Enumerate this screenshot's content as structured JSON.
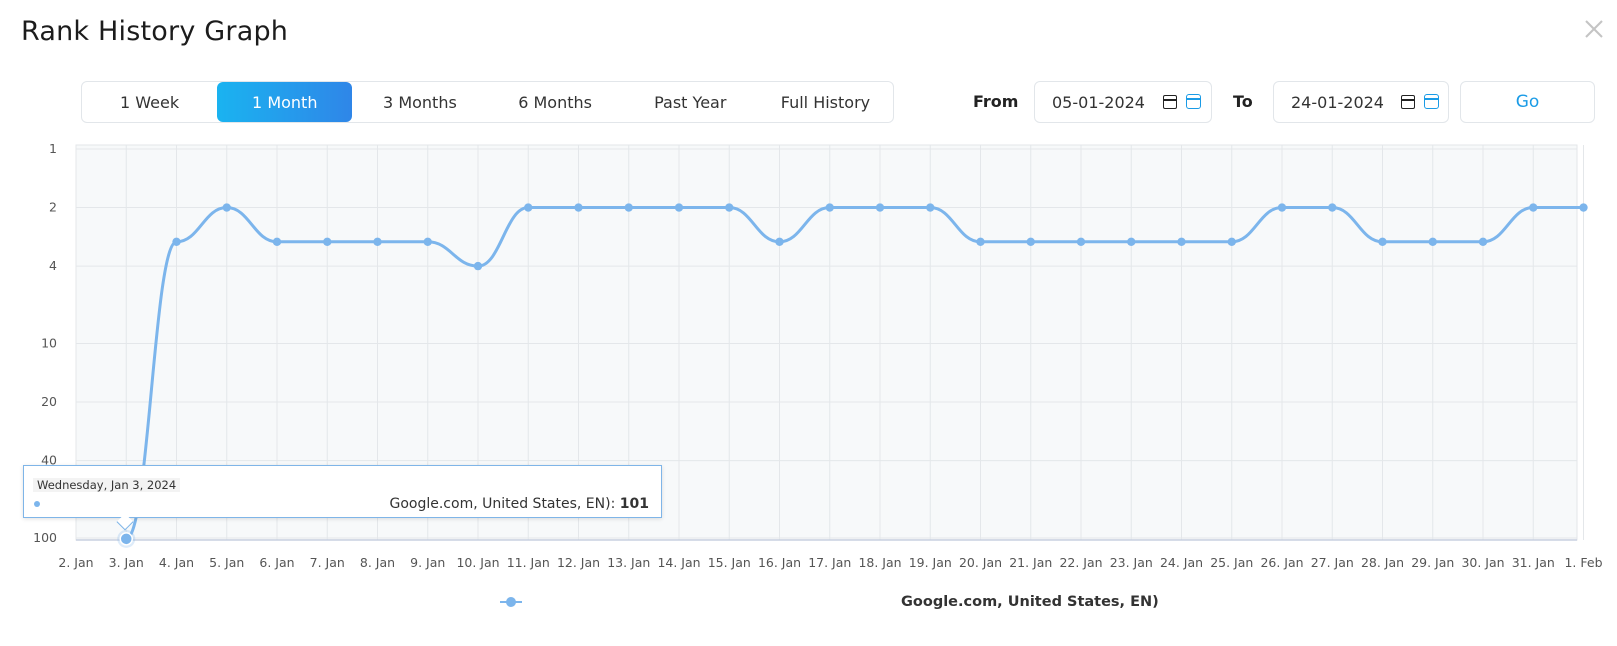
{
  "modal": {
    "title": "Rank History Graph",
    "close_icon": "close-icon"
  },
  "periods": [
    {
      "label": "1 Week",
      "active": false
    },
    {
      "label": "1 Month",
      "active": true
    },
    {
      "label": "3 Months",
      "active": false
    },
    {
      "label": "6 Months",
      "active": false
    },
    {
      "label": "Past Year",
      "active": false
    },
    {
      "label": "Full History",
      "active": false
    }
  ],
  "range": {
    "from_label": "From",
    "from_value": "05-01-2024",
    "to_label": "To",
    "to_value": "24-01-2024",
    "go_label": "Go"
  },
  "colors": {
    "accent": "#1a9be6",
    "series": "#7cb5ec",
    "active_gradient_start": "#1ab3f0",
    "active_gradient_end": "#2f86e8"
  },
  "tooltip": {
    "date": "Wednesday, Jan 3, 2024",
    "series_text": "Google.com, United States, EN): ",
    "value": "101"
  },
  "legend": {
    "label": "Google.com, United States, EN)"
  },
  "chart_data": {
    "type": "line",
    "title": "",
    "xlabel": "",
    "ylabel": "",
    "y_scale": "log",
    "y_reversed": true,
    "ylim": [
      1,
      101
    ],
    "yticks": [
      1,
      2,
      4,
      10,
      20,
      40,
      100
    ],
    "grid": true,
    "legend_position": "bottom",
    "x_tick_labels": [
      "2. Jan",
      "3. Jan",
      "4. Jan",
      "5. Jan",
      "6. Jan",
      "7. Jan",
      "8. Jan",
      "9. Jan",
      "10. Jan",
      "11. Jan",
      "12. Jan",
      "13. Jan",
      "14. Jan",
      "15. Jan",
      "16. Jan",
      "17. Jan",
      "18. Jan",
      "19. Jan",
      "20. Jan",
      "21. Jan",
      "22. Jan",
      "23. Jan",
      "24. Jan",
      "25. Jan",
      "26. Jan",
      "27. Jan",
      "28. Jan",
      "29. Jan",
      "30. Jan",
      "31. Jan",
      "1. Feb"
    ],
    "series": [
      {
        "name": "Google.com, United States, EN)",
        "x": [
          "3. Jan",
          "4. Jan",
          "5. Jan",
          "6. Jan",
          "7. Jan",
          "8. Jan",
          "9. Jan",
          "10. Jan",
          "11. Jan",
          "12. Jan",
          "13. Jan",
          "14. Jan",
          "15. Jan",
          "16. Jan",
          "17. Jan",
          "18. Jan",
          "19. Jan",
          "20. Jan",
          "21. Jan",
          "22. Jan",
          "23. Jan",
          "24. Jan",
          "25. Jan",
          "26. Jan",
          "27. Jan",
          "28. Jan",
          "29. Jan",
          "30. Jan",
          "31. Jan",
          "1. Feb"
        ],
        "values": [
          101,
          3,
          2,
          3,
          3,
          3,
          3,
          4,
          2,
          2,
          2,
          2,
          2,
          3,
          2,
          2,
          2,
          3,
          3,
          3,
          3,
          3,
          3,
          2,
          2,
          3,
          3,
          3,
          2,
          2
        ]
      }
    ],
    "highlighted_point": {
      "x": "3. Jan",
      "value": 101
    }
  }
}
